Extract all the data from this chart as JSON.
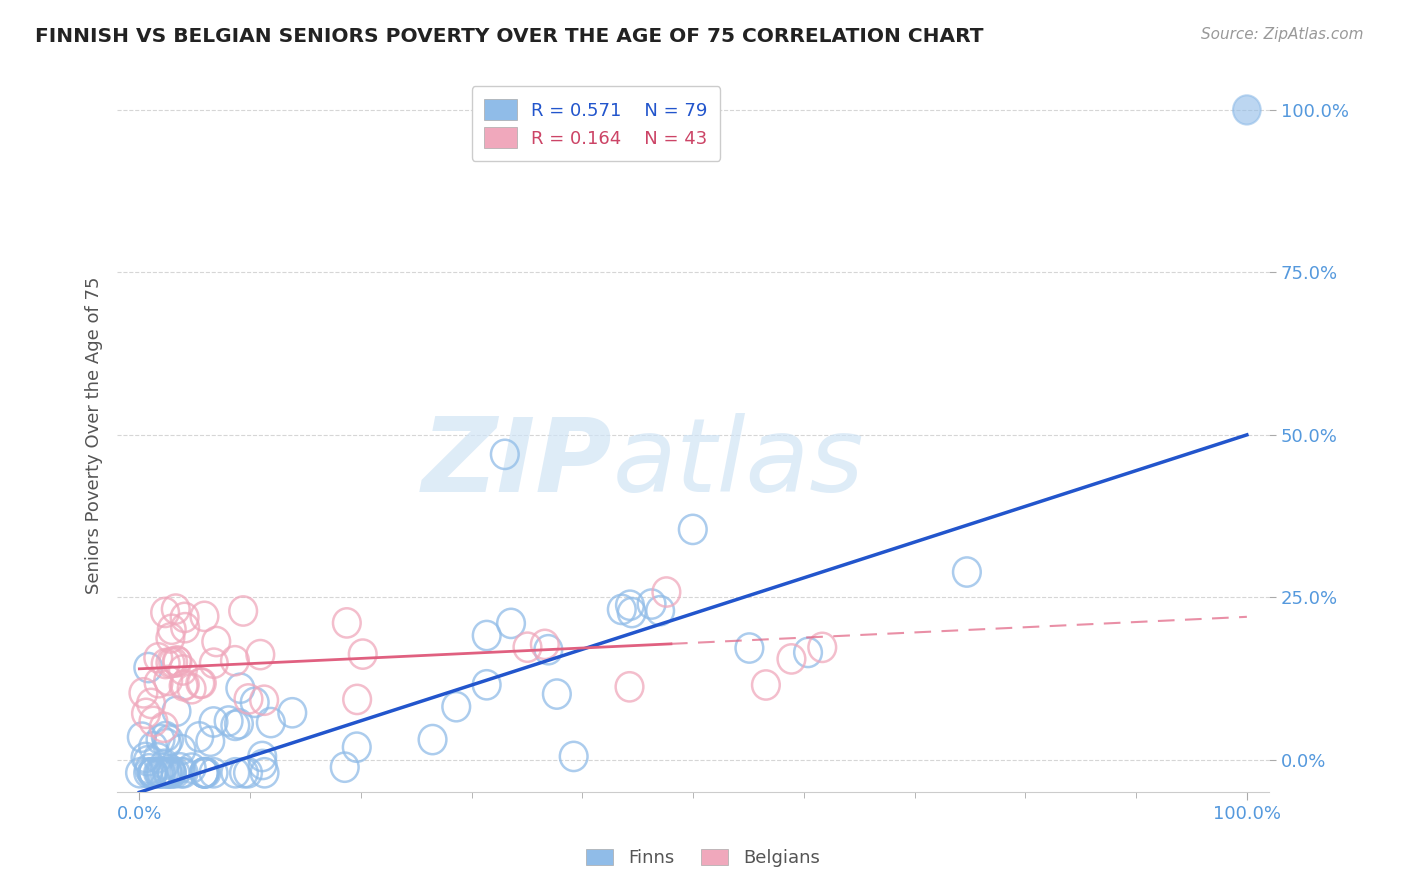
{
  "title": "FINNISH VS BELGIAN SENIORS POVERTY OVER THE AGE OF 75 CORRELATION CHART",
  "source_text": "Source: ZipAtlas.com",
  "ylabel": "Seniors Poverty Over the Age of 75",
  "xlim": [
    -0.02,
    1.02
  ],
  "ylim": [
    -0.05,
    1.05
  ],
  "ytick_labels": [
    "0.0%",
    "25.0%",
    "50.0%",
    "75.0%",
    "100.0%"
  ],
  "ytick_vals": [
    0.0,
    0.25,
    0.5,
    0.75,
    1.0
  ],
  "xtick_vals": [
    0.0,
    1.0
  ],
  "xtick_labels": [
    "0.0%",
    "100.0%"
  ],
  "legend_finn_r": "R = 0.571",
  "legend_finn_n": "N = 79",
  "legend_belg_r": "R = 0.164",
  "legend_belg_n": "N = 43",
  "finn_color": "#90bce8",
  "belg_color": "#f0a8bc",
  "finn_line_color": "#2255cc",
  "belg_line_color": "#e06080",
  "background_color": "#ffffff",
  "finn_intercept": -0.05,
  "finn_slope": 0.55,
  "belg_intercept": 0.14,
  "belg_slope": 0.08
}
